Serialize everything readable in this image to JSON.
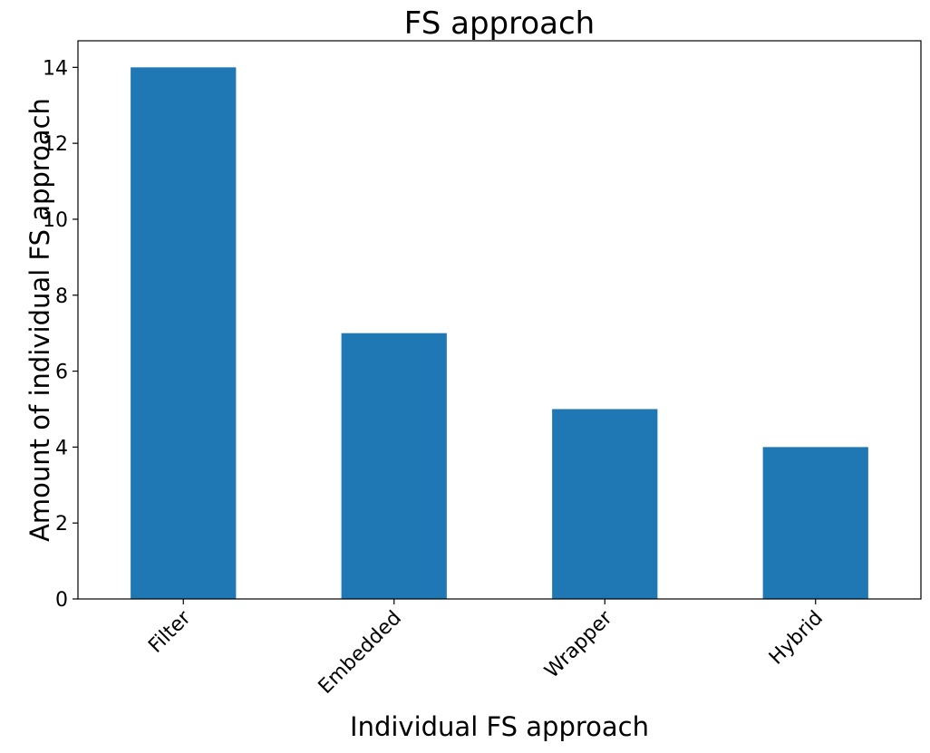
{
  "chart_data": {
    "type": "bar",
    "title": "FS approach",
    "xlabel": "Individual FS approach",
    "ylabel": "Amount of individual FS approach",
    "categories": [
      "Filter",
      "Embedded",
      "Wrapper",
      "Hybrid"
    ],
    "values": [
      14,
      7,
      5,
      4
    ],
    "ylim": [
      0,
      14.7
    ],
    "yticks": [
      0,
      2,
      4,
      6,
      8,
      10,
      12,
      14
    ],
    "grid": false,
    "legend": "none",
    "xtick_rotation_deg": 45,
    "bar_color": "#1f77b4"
  }
}
